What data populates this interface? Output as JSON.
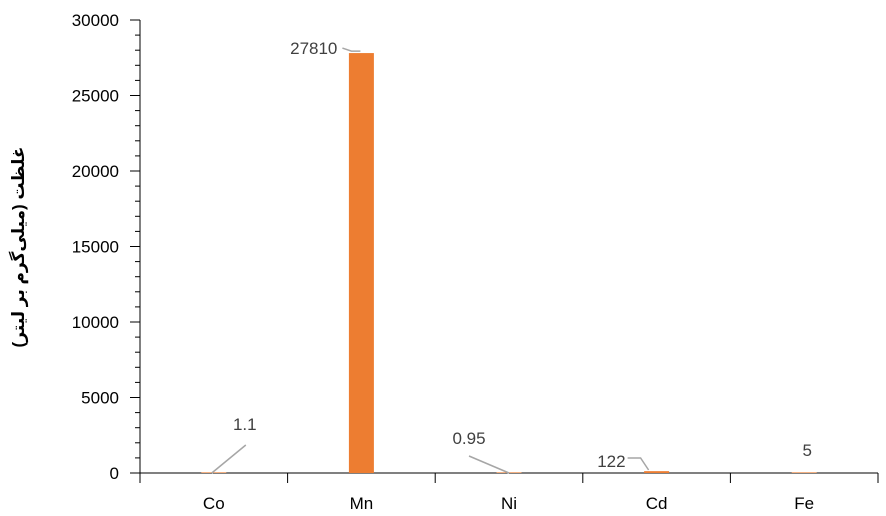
{
  "chart_data": {
    "type": "bar",
    "categories": [
      "Co",
      "Mn",
      "Ni",
      "Cd",
      "Fe"
    ],
    "values": [
      1.1,
      27810,
      0.95,
      122,
      5
    ],
    "data_labels": [
      "1.1",
      "27810",
      "0.95",
      "122",
      "5"
    ],
    "ylabel": "غلظت (میلی‌گرم بر لیتر)",
    "ylim": [
      0,
      30000
    ],
    "yticks": [
      "0",
      "5000",
      "10000",
      "15000",
      "20000",
      "25000",
      "30000"
    ],
    "grid": false,
    "legend": "none",
    "bar_color": "#ED7D31",
    "axis_color": "#000000",
    "label_color": "#404040",
    "leader_color": "#A6A6A6"
  }
}
